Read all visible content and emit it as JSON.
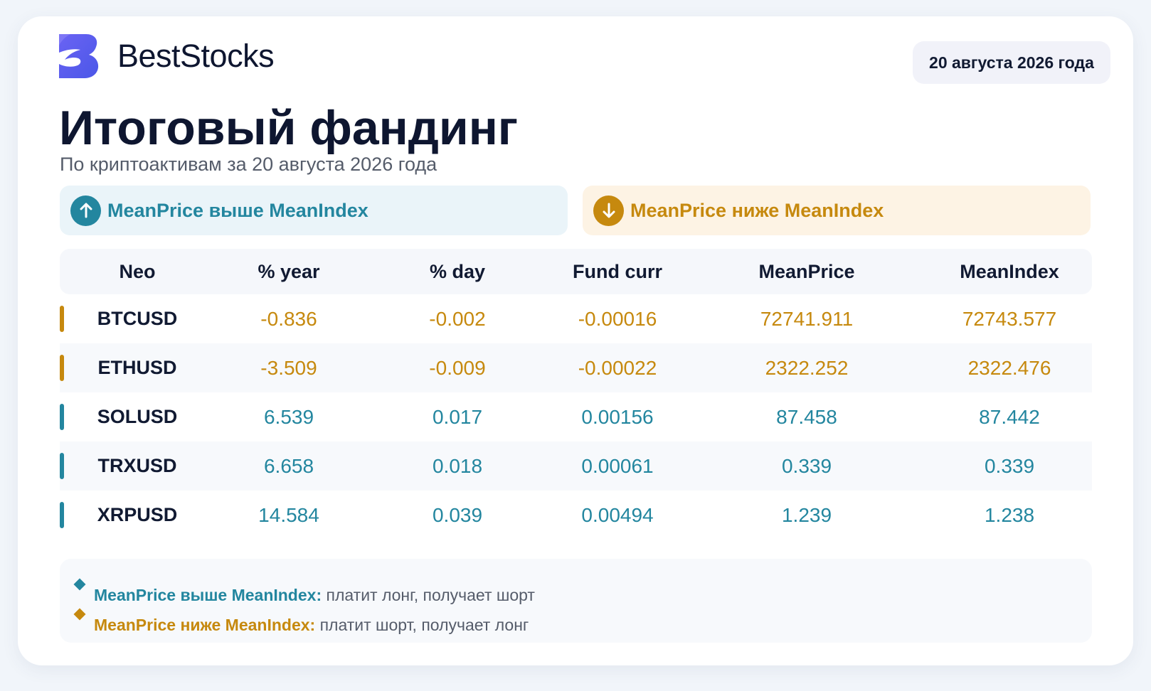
{
  "brand": {
    "name": "BestStocks",
    "logo_icon": "beststocks-logo-icon",
    "logo_color": "#5b5df0"
  },
  "date_badge": "20 августа 2026 года",
  "title": "Итоговый фандинг",
  "subtitle": "По криптоактивам за 20 августа 2026 года",
  "legend": {
    "up": {
      "label": "MeanPrice выше MeanIndex",
      "icon": "arrow-up-icon",
      "color": "#23869f"
    },
    "down": {
      "label": "MeanPrice ниже MeanIndex",
      "icon": "arrow-down-icon",
      "color": "#c6890e"
    }
  },
  "table": {
    "columns": [
      "Neo",
      "% year",
      "% day",
      "Fund curr",
      "MeanPrice",
      "MeanIndex"
    ],
    "rows": [
      {
        "name": "BTCUSD",
        "trend": "down",
        "values": [
          "-0.836",
          "-0.002",
          "-0.00016",
          "72741.911",
          "72743.577"
        ]
      },
      {
        "name": "ETHUSD",
        "trend": "down",
        "values": [
          "-3.509",
          "-0.009",
          "-0.00022",
          "2322.252",
          "2322.476"
        ]
      },
      {
        "name": "SOLUSD",
        "trend": "up",
        "values": [
          "6.539",
          "0.017",
          "0.00156",
          "87.458",
          "87.442"
        ]
      },
      {
        "name": "TRXUSD",
        "trend": "up",
        "values": [
          "6.658",
          "0.018",
          "0.00061",
          "0.339",
          "0.339"
        ]
      },
      {
        "name": "XRPUSD",
        "trend": "up",
        "values": [
          "14.584",
          "0.039",
          "0.00494",
          "1.239",
          "1.238"
        ]
      }
    ]
  },
  "notes": {
    "up": {
      "key": "MeanPrice выше MeanIndex:",
      "text": " платит лонг, получает шорт"
    },
    "down": {
      "key": "MeanPrice ниже MeanIndex:",
      "text": " платит шорт, получает лонг"
    }
  }
}
